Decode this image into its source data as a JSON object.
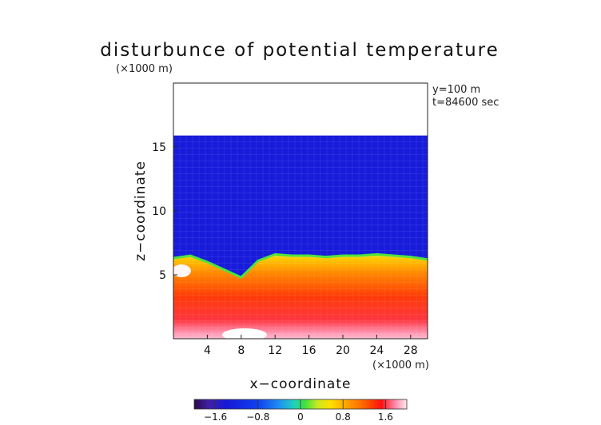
{
  "chart_data": {
    "type": "heatmap",
    "title": "disturbunce of potential temperature",
    "z_unit": "(×1000 m)",
    "x_unit": "(×1000 m)",
    "xlabel": "x−coordinate",
    "ylabel": "z−coordinate",
    "annotations": [
      "y=100 m",
      "t=84600 sec"
    ],
    "x_ticks": [
      "4",
      "8",
      "12",
      "16",
      "20",
      "24",
      "28"
    ],
    "x_tick_values": [
      4,
      8,
      12,
      16,
      20,
      24,
      28
    ],
    "y_ticks": [
      "5",
      "10",
      "15"
    ],
    "y_tick_values": [
      5,
      10,
      15
    ],
    "xlim": [
      0,
      30
    ],
    "ylim": [
      0,
      20
    ],
    "colorbar": {
      "ticks": [
        "−1.6",
        "−0.8",
        "0",
        "0.8",
        "1.6"
      ],
      "tick_values": [
        -1.6,
        -0.8,
        0,
        0.8,
        1.6
      ],
      "range": [
        -2.0,
        2.0
      ],
      "stops": [
        [
          0.0,
          "#2a0a4a"
        ],
        [
          0.07,
          "#4020a8"
        ],
        [
          0.15,
          "#1818d8"
        ],
        [
          0.3,
          "#1040f0"
        ],
        [
          0.4,
          "#2090f0"
        ],
        [
          0.47,
          "#20d0c0"
        ],
        [
          0.52,
          "#40e040"
        ],
        [
          0.58,
          "#c8e820"
        ],
        [
          0.64,
          "#ffe000"
        ],
        [
          0.72,
          "#ffa000"
        ],
        [
          0.8,
          "#ff6000"
        ],
        [
          0.88,
          "#ff1010"
        ],
        [
          0.94,
          "#ff80a0"
        ],
        [
          1.0,
          "#ffe8ee"
        ]
      ]
    },
    "field": {
      "domain_top_z": 15.9,
      "upper_layer_value": -1.35,
      "boundary_layer_top_z": [
        6.3,
        6.5,
        6.0,
        5.4,
        4.8,
        6.1,
        6.6,
        6.5,
        6.5,
        6.4,
        6.5,
        6.5,
        6.6,
        6.5,
        6.4,
        6.2
      ],
      "boundary_layer_top_x": [
        0,
        2,
        4,
        6,
        8,
        10,
        12,
        14,
        16,
        18,
        20,
        22,
        24,
        26,
        28,
        30
      ],
      "boundary_layer_value": 1.2,
      "surface_value": 1.9
    }
  }
}
